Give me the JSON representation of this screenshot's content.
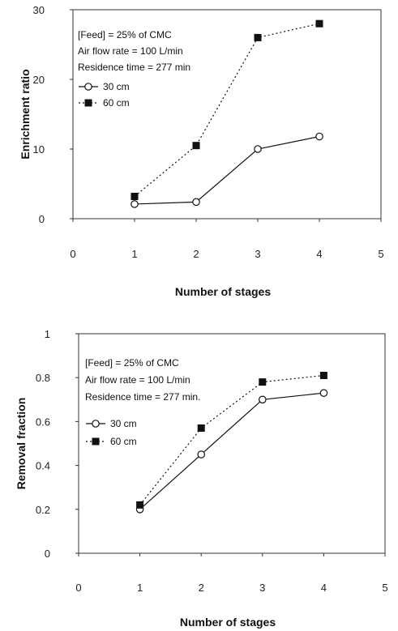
{
  "chart_data": [
    {
      "type": "line",
      "xlabel": "Number of stages",
      "ylabel": "Enrichment ratio",
      "xlim": [
        0,
        5
      ],
      "ylim": [
        0,
        30
      ],
      "xticks": [
        "0",
        "1",
        "2",
        "3",
        "4",
        "5"
      ],
      "yticks": [
        "0",
        "10",
        "20",
        "30"
      ],
      "annotations": [
        "[Feed] = 25% of CMC",
        "Air flow rate = 100 L/min",
        "Residence time = 277 min"
      ],
      "legend_position": "top-left",
      "series": [
        {
          "name": "30 cm",
          "marker": "open-circle",
          "line": "solid",
          "x": [
            1,
            2,
            3,
            4
          ],
          "y": [
            2.1,
            2.4,
            10,
            11.8
          ]
        },
        {
          "name": "60 cm",
          "marker": "filled-square",
          "line": "dotted",
          "x": [
            1,
            2,
            3,
            4
          ],
          "y": [
            3.2,
            10.5,
            26,
            28
          ]
        }
      ]
    },
    {
      "type": "line",
      "xlabel": "Number of stages",
      "ylabel": "Removal fraction",
      "xlim": [
        0,
        5
      ],
      "ylim": [
        0,
        1
      ],
      "xticks": [
        "0",
        "1",
        "2",
        "3",
        "4",
        "5"
      ],
      "yticks": [
        "0",
        "0.2",
        "0.4",
        "0.6",
        "0.8",
        "1"
      ],
      "annotations": [
        "[Feed] = 25% of CMC",
        "Air flow rate = 100 L/min",
        "Residence time = 277 min."
      ],
      "legend_position": "top-left",
      "series": [
        {
          "name": "30 cm",
          "marker": "open-circle",
          "line": "solid",
          "x": [
            1,
            2,
            3,
            4
          ],
          "y": [
            0.2,
            0.45,
            0.7,
            0.73
          ]
        },
        {
          "name": "60 cm",
          "marker": "filled-square",
          "line": "dotted",
          "x": [
            1,
            2,
            3,
            4
          ],
          "y": [
            0.22,
            0.57,
            0.78,
            0.81
          ]
        }
      ]
    }
  ]
}
